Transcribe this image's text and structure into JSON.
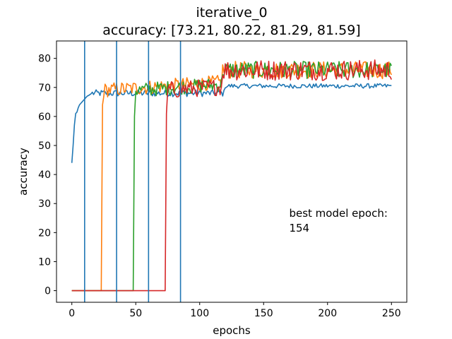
{
  "chart_data": {
    "type": "line",
    "title": "iterative_0",
    "subtitle": "accuracy: [73.21, 80.22, 81.29, 81.59]",
    "xlabel": "epochs",
    "ylabel": "accuracy",
    "xlim": [
      -12,
      262
    ],
    "ylim": [
      -4,
      86
    ],
    "xticks": [
      0,
      50,
      100,
      150,
      200,
      250
    ],
    "yticks": [
      0,
      10,
      20,
      30,
      40,
      50,
      60,
      70,
      80
    ],
    "grid": false,
    "legend": "none",
    "annotation": {
      "line1": "best model epoch:",
      "line2": "154",
      "x": 170,
      "y": 25
    },
    "vlines": {
      "x": [
        10,
        35,
        60,
        85
      ],
      "color": "#1f77b4"
    },
    "series": [
      {
        "color": "#1f77b4",
        "start": 0,
        "end": 250,
        "plateau": 70.5,
        "noise": 0.8,
        "warmup": [
          44,
          50,
          57,
          61,
          61.5,
          63,
          64,
          64.5,
          65,
          65.5,
          66,
          66.5,
          67,
          67.2,
          67.5,
          67.8
        ]
      },
      {
        "color": "#ff7f0e",
        "start": 0,
        "jump": 24,
        "jump_value": 64,
        "end": 250,
        "plateau": 76,
        "noise": 2.5
      },
      {
        "color": "#2ca02c",
        "start": 0,
        "jump": 49,
        "jump_value": 60,
        "end": 250,
        "plateau": 76,
        "noise": 2.5
      },
      {
        "color": "#d62728",
        "start": 0,
        "jump": 74,
        "jump_value": 61,
        "end": 250,
        "plateau": 76,
        "noise": 3.0
      }
    ]
  }
}
